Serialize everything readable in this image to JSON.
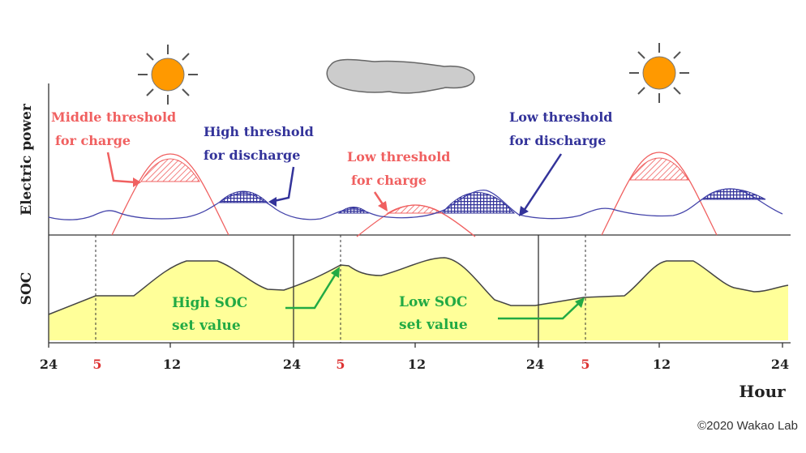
{
  "labels": {
    "middle_charge_1": "Middle threshold",
    "middle_charge_2": "for charge",
    "high_discharge_1": "High threshold",
    "high_discharge_2": "for discharge",
    "low_charge_1": "Low threshold",
    "low_charge_2": "for charge",
    "low_discharge_1": "Low threshold",
    "low_discharge_2": "for discharge",
    "high_soc_1": "High SOC",
    "high_soc_2": "set value",
    "low_soc_1": "Low SOC",
    "low_soc_2": "set value"
  },
  "axes": {
    "y_top": "Electric power",
    "y_bottom": "SOC",
    "x_label": "Hour",
    "ticks": [
      "24",
      "5",
      "12",
      "24",
      "5",
      "12",
      "24",
      "5",
      "12",
      "24"
    ]
  },
  "copyright": "©2020 Wakao Lab",
  "colors": {
    "charge": "#f06060",
    "discharge": "#33339a",
    "soc_fill": "#ffff99",
    "arrow_green": "#22aa44",
    "sun": "#ff9900",
    "cloud": "#cccccc"
  },
  "icons": [
    "sun-icon",
    "cloud-icon",
    "sun-icon"
  ]
}
